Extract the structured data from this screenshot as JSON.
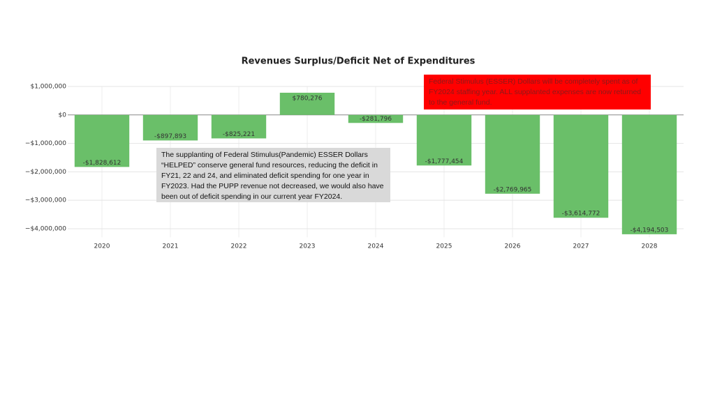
{
  "chart_data": {
    "type": "bar",
    "title": "Revenues Surplus/Deficit Net of Expenditures",
    "categories": [
      "2020",
      "2021",
      "2022",
      "2023",
      "2024",
      "2025",
      "2026",
      "2027",
      "2028"
    ],
    "values": [
      -1828612,
      -897893,
      -825221,
      780276,
      -281796,
      -1777454,
      -2769965,
      -3614772,
      -4194503
    ],
    "value_labels": [
      "-$1,828,612",
      "-$897,893",
      "-$825,221",
      "$780,276",
      "-$281,796",
      "-$1,777,454",
      "-$2,769,965",
      "-$3,614,772",
      "-$4,194,503"
    ],
    "color": "#6abf69",
    "ylim": [
      -4300000,
      1000000
    ],
    "yticks": [
      {
        "value": 1000000,
        "label": "$1,000,000"
      },
      {
        "value": 0,
        "label": "$0"
      },
      {
        "value": -1000000,
        "label": "−$1,000,000"
      },
      {
        "value": -2000000,
        "label": "−$2,000,000"
      },
      {
        "value": -3000000,
        "label": "−$3,000,000"
      },
      {
        "value": -4000000,
        "label": "−$4,000,000"
      }
    ],
    "grid": true,
    "annotations": [
      "The supplanting of Federal Stimulus(Pandemic) ESSER Dollars “HELPED” conserve general fund resources, reducing the deficit in FY21, 22 and 24, and eliminated deficit spending for one year in FY2023. Had the PUPP revenue not decreased, we would also have been out of deficit spending in our current year FY2024.",
      "Federal Stimulus (ESSER) Dollars will be completely spent as of FY2024  staffing year. ALL supplanted expenses are now returned to the general fund."
    ]
  }
}
